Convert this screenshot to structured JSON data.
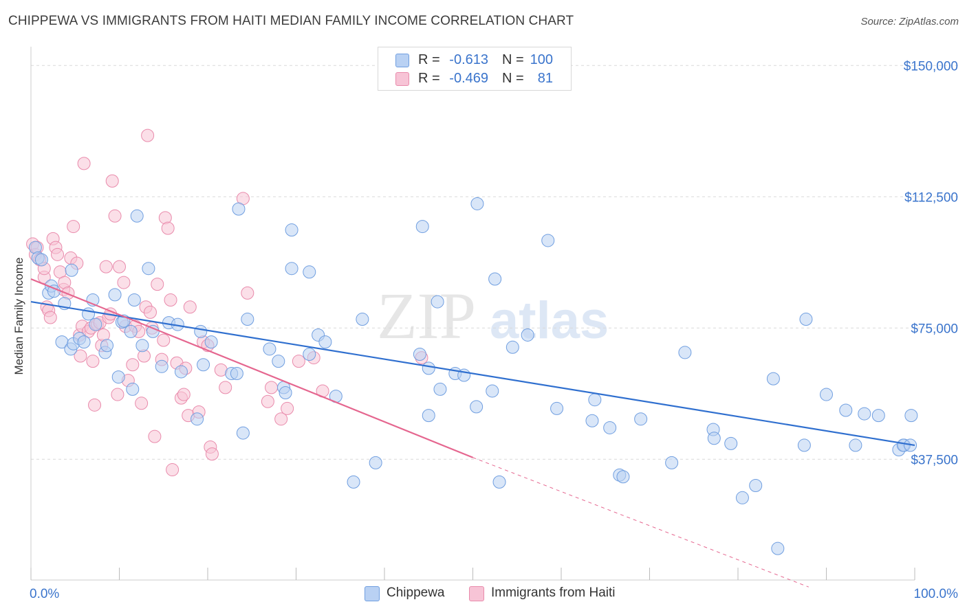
{
  "title": "CHIPPEWA VS IMMIGRANTS FROM HAITI MEDIAN FAMILY INCOME CORRELATION CHART",
  "source": "Source: ZipAtlas.com",
  "watermark": {
    "zip": "ZIP",
    "atlas": "atlas"
  },
  "legend": {
    "r_label": "R =",
    "n_label": "N =",
    "rows": [
      {
        "name": "Chippewa",
        "r": "-0.613",
        "n": "100",
        "fill": "#b9d1f3",
        "stroke": "#6f9ee0"
      },
      {
        "name": "Immigrants from Haiti",
        "r": "-0.469",
        "n": "81",
        "fill": "#f7c4d6",
        "stroke": "#e98aab"
      }
    ]
  },
  "bottom_legend": {
    "a": "Chippewa",
    "b": "Immigrants from Haiti"
  },
  "colors": {
    "blue_line": "#2f6fcf",
    "pink_line": "#e5668f",
    "blue_fill": "#b9d1f3",
    "blue_stroke": "#6f9ee0",
    "pink_fill": "#f7c4d6",
    "pink_stroke": "#e98aab",
    "tick_text": "#3a74cc",
    "grid": "#d9d9d9"
  },
  "chart_data": {
    "type": "scatter",
    "title": "CHIPPEWA VS IMMIGRANTS FROM HAITI MEDIAN FAMILY INCOME CORRELATION CHART",
    "xlabel": "",
    "ylabel": "Median Family Income",
    "xlim": [
      0,
      100
    ],
    "ylim": [
      3000,
      153000
    ],
    "x_tick_labels": [
      "0.0%",
      "100.0%"
    ],
    "y_ticks": [
      37500,
      75000,
      112500,
      150000
    ],
    "y_tick_labels": [
      "$37,500",
      "$75,000",
      "$112,500",
      "$150,000"
    ],
    "grid": true,
    "legend_position": "top-center",
    "series": [
      {
        "name": "Chippewa",
        "trend": {
          "x0": 0,
          "y0": 82500,
          "x1": 100,
          "y1": 41500
        },
        "points": [
          [
            0.5,
            98
          ],
          [
            0.8,
            95
          ],
          [
            1.2,
            94.5
          ],
          [
            2,
            85
          ],
          [
            2.3,
            87
          ],
          [
            2.6,
            85.5
          ],
          [
            3.8,
            82
          ],
          [
            3.5,
            71
          ],
          [
            4.5,
            69
          ],
          [
            4.8,
            70.5
          ],
          [
            4.6,
            91.5
          ],
          [
            5.5,
            72
          ],
          [
            6,
            71
          ],
          [
            6.5,
            79
          ],
          [
            7,
            83
          ],
          [
            7.3,
            76
          ],
          [
            8.4,
            68
          ],
          [
            8.6,
            70
          ],
          [
            9.5,
            84.5
          ],
          [
            9.9,
            61
          ],
          [
            10.3,
            76.7
          ],
          [
            10.5,
            77
          ],
          [
            11.3,
            74
          ],
          [
            11.5,
            57.5
          ],
          [
            11.7,
            83
          ],
          [
            12,
            107
          ],
          [
            12.6,
            70
          ],
          [
            13.3,
            92
          ],
          [
            13.8,
            74
          ],
          [
            14.8,
            64
          ],
          [
            15.6,
            76.5
          ],
          [
            16.6,
            76
          ],
          [
            17,
            62.5
          ],
          [
            18.8,
            49
          ],
          [
            19.2,
            74
          ],
          [
            19.5,
            64.5
          ],
          [
            20.4,
            71
          ],
          [
            22.7,
            62
          ],
          [
            23.3,
            62
          ],
          [
            23.5,
            109
          ],
          [
            24,
            45
          ],
          [
            24.5,
            77.5
          ],
          [
            27,
            69
          ],
          [
            28,
            65.5
          ],
          [
            28.6,
            58
          ],
          [
            28.8,
            56.5
          ],
          [
            29.5,
            103
          ],
          [
            29.5,
            92
          ],
          [
            31.5,
            91
          ],
          [
            31.5,
            67.5
          ],
          [
            32.5,
            73
          ],
          [
            33.3,
            71
          ],
          [
            34.5,
            55.5
          ],
          [
            36.5,
            31
          ],
          [
            37.5,
            77.5
          ],
          [
            39,
            36.5
          ],
          [
            44,
            67.5
          ],
          [
            44.3,
            104
          ],
          [
            45,
            63.5
          ],
          [
            45,
            50
          ],
          [
            46,
            82.5
          ],
          [
            46.3,
            57.5
          ],
          [
            48,
            62
          ],
          [
            49,
            61.5
          ],
          [
            50.4,
            52.5
          ],
          [
            50.5,
            110.5
          ],
          [
            52.2,
            57
          ],
          [
            52.5,
            89
          ],
          [
            53,
            31
          ],
          [
            54.5,
            69.5
          ],
          [
            56.2,
            73
          ],
          [
            58.5,
            100
          ],
          [
            59.5,
            52
          ],
          [
            63.5,
            48.5
          ],
          [
            63.8,
            54.5
          ],
          [
            65.5,
            46.5
          ],
          [
            66.6,
            33
          ],
          [
            67,
            32.5
          ],
          [
            69,
            49
          ],
          [
            72.5,
            36.5
          ],
          [
            74,
            68
          ],
          [
            77.2,
            46
          ],
          [
            77.3,
            43.5
          ],
          [
            79.2,
            42
          ],
          [
            80.5,
            26.5
          ],
          [
            82,
            30
          ],
          [
            84,
            60.5
          ],
          [
            84.5,
            12
          ],
          [
            87.5,
            41.5
          ],
          [
            87.7,
            77.5
          ],
          [
            90,
            56
          ],
          [
            92.2,
            51.5
          ],
          [
            93.3,
            41.5
          ],
          [
            94.3,
            50.5
          ],
          [
            95.9,
            50
          ],
          [
            98.2,
            40.2
          ],
          [
            98.8,
            41.5
          ],
          [
            98.7,
            41.5
          ],
          [
            99.5,
            41.5
          ],
          [
            99.6,
            50
          ]
        ]
      },
      {
        "name": "Immigrants from Haiti",
        "trend": {
          "x0": 0,
          "y0": 89000,
          "x1": 50,
          "y1": 38000,
          "dashed_to": {
            "x": 88,
            "y": 1000
          }
        },
        "points": [
          [
            0.2,
            99
          ],
          [
            0.5,
            96
          ],
          [
            0.7,
            98
          ],
          [
            1,
            94.5
          ],
          [
            1.5,
            89.5
          ],
          [
            1.5,
            92
          ],
          [
            1.8,
            81
          ],
          [
            2,
            80
          ],
          [
            2.2,
            78
          ],
          [
            2.5,
            100.5
          ],
          [
            2.8,
            98
          ],
          [
            3,
            96
          ],
          [
            3.3,
            91
          ],
          [
            3.7,
            86
          ],
          [
            3.8,
            88
          ],
          [
            4.2,
            85
          ],
          [
            4.5,
            95
          ],
          [
            4.8,
            104
          ],
          [
            5.2,
            93.5
          ],
          [
            5.5,
            73
          ],
          [
            5.6,
            67
          ],
          [
            5.8,
            75.5
          ],
          [
            6,
            122
          ],
          [
            6.5,
            74
          ],
          [
            6.8,
            75
          ],
          [
            7,
            65.5
          ],
          [
            7.2,
            53
          ],
          [
            7.5,
            76
          ],
          [
            7.8,
            76.5
          ],
          [
            8,
            70
          ],
          [
            8.2,
            73
          ],
          [
            8.5,
            92.5
          ],
          [
            8.8,
            78
          ],
          [
            9,
            79
          ],
          [
            9.2,
            117
          ],
          [
            9.5,
            107
          ],
          [
            9.8,
            56
          ],
          [
            10,
            92.5
          ],
          [
            10.5,
            88
          ],
          [
            10.7,
            75.5
          ],
          [
            11,
            60
          ],
          [
            11.5,
            64.5
          ],
          [
            11.8,
            75.5
          ],
          [
            12.2,
            74
          ],
          [
            12.5,
            53.5
          ],
          [
            12.8,
            67
          ],
          [
            13,
            81
          ],
          [
            13.2,
            130
          ],
          [
            13.5,
            79.5
          ],
          [
            13.7,
            75
          ],
          [
            14,
            44
          ],
          [
            14.3,
            87.5
          ],
          [
            14.8,
            66
          ],
          [
            15,
            71.5
          ],
          [
            15.2,
            106.5
          ],
          [
            15.5,
            103.5
          ],
          [
            15.8,
            83
          ],
          [
            16,
            34.5
          ],
          [
            16.5,
            65
          ],
          [
            17,
            55
          ],
          [
            17.3,
            56
          ],
          [
            17.5,
            63.5
          ],
          [
            17.8,
            50
          ],
          [
            18,
            81
          ],
          [
            19,
            51
          ],
          [
            19.5,
            71
          ],
          [
            20,
            70
          ],
          [
            20.3,
            41
          ],
          [
            20.5,
            39
          ],
          [
            21.5,
            63
          ],
          [
            22,
            58
          ],
          [
            24,
            112
          ],
          [
            24.5,
            85
          ],
          [
            26.8,
            54
          ],
          [
            27.2,
            58
          ],
          [
            28.3,
            49
          ],
          [
            29,
            52
          ],
          [
            30.3,
            65.5
          ],
          [
            32,
            66.5
          ],
          [
            33,
            57
          ],
          [
            44.2,
            66.5
          ]
        ]
      }
    ]
  }
}
